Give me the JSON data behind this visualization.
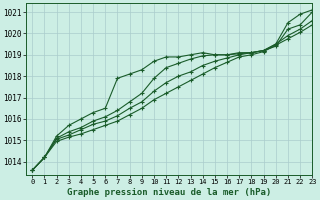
{
  "title": "Graphe pression niveau de la mer (hPa)",
  "bg_color": "#cceee4",
  "plot_bg_color": "#cceee4",
  "grid_color": "#aacccc",
  "line_color": "#1a5c2a",
  "xlim": [
    -0.5,
    23
  ],
  "ylim": [
    1013.4,
    1021.4
  ],
  "xticks": [
    0,
    1,
    2,
    3,
    4,
    5,
    6,
    7,
    8,
    9,
    10,
    11,
    12,
    13,
    14,
    15,
    16,
    17,
    18,
    19,
    20,
    21,
    22,
    23
  ],
  "yticks": [
    1014,
    1015,
    1016,
    1017,
    1018,
    1019,
    1020,
    1021
  ],
  "series": [
    [
      1013.6,
      1014.2,
      1015.2,
      1015.7,
      1016.0,
      1016.3,
      1016.5,
      1017.9,
      1018.1,
      1018.3,
      1018.7,
      1018.9,
      1018.9,
      1019.0,
      1019.1,
      1019.0,
      1019.0,
      1019.1,
      1019.1,
      1019.2,
      1019.5,
      1020.5,
      1020.9,
      1021.1
    ],
    [
      1013.6,
      1014.2,
      1015.1,
      1015.4,
      1015.6,
      1015.9,
      1016.1,
      1016.4,
      1016.8,
      1017.2,
      1017.9,
      1018.4,
      1018.6,
      1018.8,
      1018.95,
      1019.0,
      1019.0,
      1019.05,
      1019.1,
      1019.2,
      1019.4,
      1020.2,
      1020.4,
      1021.0
    ],
    [
      1013.6,
      1014.2,
      1015.05,
      1015.25,
      1015.5,
      1015.75,
      1015.9,
      1016.15,
      1016.5,
      1016.8,
      1017.3,
      1017.7,
      1018.0,
      1018.2,
      1018.5,
      1018.7,
      1018.85,
      1019.0,
      1019.1,
      1019.2,
      1019.5,
      1019.9,
      1020.2,
      1020.6
    ],
    [
      1013.6,
      1014.2,
      1014.95,
      1015.15,
      1015.3,
      1015.5,
      1015.7,
      1015.9,
      1016.2,
      1016.5,
      1016.9,
      1017.2,
      1017.5,
      1017.8,
      1018.1,
      1018.4,
      1018.65,
      1018.9,
      1019.0,
      1019.15,
      1019.45,
      1019.75,
      1020.05,
      1020.4
    ]
  ]
}
